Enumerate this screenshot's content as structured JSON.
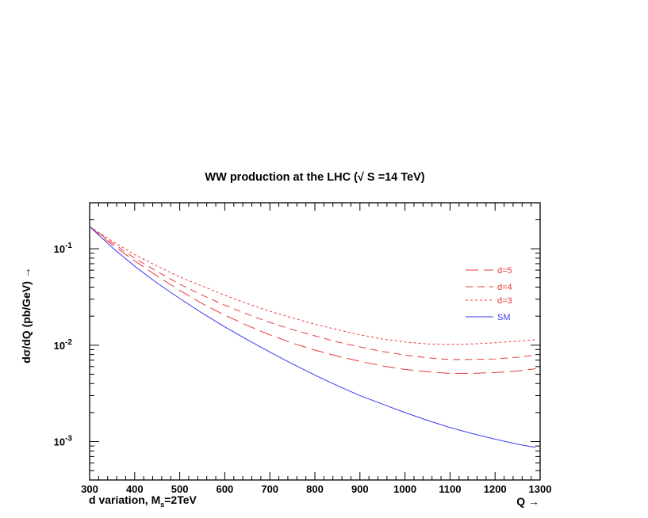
{
  "chart_data": {
    "type": "line",
    "title": "WW production at the LHC (√ S =14 TeV)",
    "xlabel": "Q →",
    "ylabel": "dσ/dQ (pb/GeV)  →",
    "bottom_left_label": {
      "prefix": "d variation,  M",
      "sub": "s",
      "suffix": "=2TeV"
    },
    "x_scale": "linear",
    "y_scale": "log",
    "xlim": [
      300,
      1300
    ],
    "ylim": [
      0.0004,
      0.3
    ],
    "x_ticks": [
      300,
      400,
      500,
      600,
      700,
      800,
      900,
      1000,
      1100,
      1200,
      1300
    ],
    "y_ticks": [
      {
        "value": 0.1,
        "base": "10",
        "exp": "-1"
      },
      {
        "value": 0.01,
        "base": "10",
        "exp": "-2"
      },
      {
        "value": 0.001,
        "base": "10",
        "exp": "-3"
      }
    ],
    "legend_position": "right",
    "x": [
      300,
      350,
      400,
      450,
      500,
      550,
      600,
      650,
      700,
      750,
      800,
      850,
      900,
      950,
      1000,
      1050,
      1100,
      1150,
      1200,
      1250,
      1290
    ],
    "series": [
      {
        "name": "d=5",
        "color": "#e8383b",
        "style": "longdash",
        "values": [
          0.17,
          0.11,
          0.075,
          0.052,
          0.037,
          0.027,
          0.0205,
          0.016,
          0.0128,
          0.0105,
          0.0089,
          0.0077,
          0.0068,
          0.0061,
          0.0056,
          0.0053,
          0.0051,
          0.0051,
          0.0052,
          0.0054,
          0.0057
        ]
      },
      {
        "name": "d=4",
        "color": "#e8383b",
        "style": "dash",
        "values": [
          0.17,
          0.115,
          0.08,
          0.058,
          0.043,
          0.033,
          0.026,
          0.021,
          0.0172,
          0.0145,
          0.0125,
          0.0108,
          0.0096,
          0.0086,
          0.0079,
          0.0074,
          0.0071,
          0.0071,
          0.0072,
          0.0075,
          0.0079
        ]
      },
      {
        "name": "d=3",
        "color": "#e8383b",
        "style": "dot",
        "values": [
          0.17,
          0.12,
          0.087,
          0.066,
          0.051,
          0.041,
          0.033,
          0.027,
          0.0225,
          0.0192,
          0.0165,
          0.0145,
          0.0128,
          0.0116,
          0.0108,
          0.0103,
          0.0102,
          0.0103,
          0.0106,
          0.011,
          0.0114
        ]
      },
      {
        "name": "SM",
        "color": "#3b3bf2",
        "style": "solid",
        "values": [
          0.17,
          0.103,
          0.066,
          0.044,
          0.0305,
          0.0215,
          0.0155,
          0.0114,
          0.0085,
          0.0064,
          0.0049,
          0.0038,
          0.003,
          0.00245,
          0.002,
          0.00166,
          0.0014,
          0.00121,
          0.00106,
          0.00094,
          0.00087
        ]
      }
    ]
  }
}
